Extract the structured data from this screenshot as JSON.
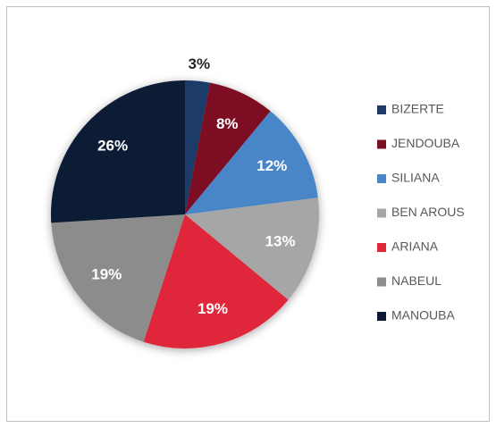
{
  "chart_data": {
    "type": "pie",
    "categories": [
      "BIZERTE",
      "JENDOUBA",
      "SILIANA",
      "BEN AROUS",
      "ARIANA",
      "NABEUL",
      "MANOUBA"
    ],
    "values": [
      3,
      8,
      12,
      13,
      19,
      19,
      26
    ],
    "value_labels": [
      "3%",
      "8%",
      "12%",
      "13%",
      "19%",
      "19%",
      "26%"
    ],
    "colors": [
      "#1f3a68",
      "#7b1020",
      "#4a86c8",
      "#a6a6a6",
      "#e0283a",
      "#8c8c8c",
      "#0c1a36"
    ],
    "legend": "right"
  }
}
